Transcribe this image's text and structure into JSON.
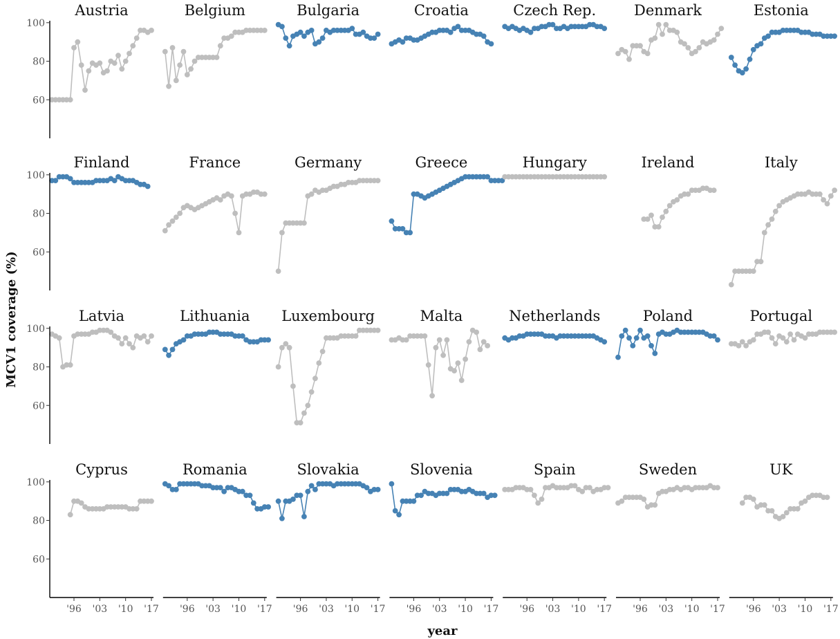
{
  "chart_data": {
    "type": "line",
    "xlabel": "year",
    "ylabel": "MCV1 coverage (%)",
    "xlim": [
      1990,
      2017
    ],
    "ylim": [
      40,
      101
    ],
    "y_ticks": [
      60,
      80,
      100
    ],
    "x_ticks": [
      {
        "value": 1996,
        "label": "'96"
      },
      {
        "value": 2003,
        "label": "'03"
      },
      {
        "value": 2010,
        "label": "'10"
      },
      {
        "value": 2017,
        "label": "'17"
      }
    ],
    "colors": {
      "highlight": "#4682b4",
      "other": "#bebebe"
    },
    "facets": [
      {
        "name": "Austria",
        "highlight": false,
        "start": 1990,
        "values": [
          60,
          60,
          60,
          60,
          60,
          60,
          87,
          90,
          78,
          65,
          75,
          79,
          78,
          79,
          74,
          75,
          80,
          79,
          83,
          76,
          80,
          84,
          88,
          92,
          96,
          96,
          95,
          96
        ]
      },
      {
        "name": "Belgium",
        "highlight": false,
        "start": 1990,
        "values": [
          85,
          67,
          87,
          70,
          78,
          85,
          73,
          76,
          80,
          82,
          82,
          82,
          82,
          82,
          82,
          88,
          92,
          92,
          93,
          95,
          95,
          95,
          96,
          96,
          96,
          96,
          96,
          96
        ]
      },
      {
        "name": "Bulgaria",
        "highlight": true,
        "start": 1990,
        "values": [
          99,
          98,
          92,
          88,
          93,
          94,
          95,
          93,
          95,
          96,
          89,
          90,
          92,
          96,
          95,
          96,
          96,
          96,
          96,
          96,
          97,
          94,
          94,
          95,
          93,
          92,
          92,
          94
        ]
      },
      {
        "name": "Croatia",
        "highlight": true,
        "start": 1990,
        "values": [
          89,
          90,
          91,
          90,
          92,
          92,
          91,
          91,
          92,
          93,
          94,
          95,
          95,
          96,
          96,
          96,
          95,
          97,
          98,
          96,
          96,
          96,
          95,
          94,
          94,
          93,
          90,
          89
        ]
      },
      {
        "name": "Czech Rep.",
        "highlight": true,
        "start": 1990,
        "values": [
          98,
          97,
          98,
          97,
          96,
          97,
          96,
          95,
          97,
          97,
          98,
          98,
          99,
          99,
          97,
          97,
          98,
          97,
          98,
          98,
          98,
          98,
          98,
          99,
          99,
          98,
          98,
          97
        ]
      },
      {
        "name": "Denmark",
        "highlight": false,
        "start": 1990,
        "values": [
          84,
          86,
          85,
          81,
          88,
          88,
          88,
          85,
          84,
          91,
          92,
          99,
          94,
          99,
          96,
          96,
          95,
          90,
          89,
          87,
          84,
          85,
          87,
          90,
          89,
          90,
          91,
          94,
          97
        ]
      },
      {
        "name": "Estonia",
        "highlight": true,
        "start": 1990,
        "values": [
          82,
          78,
          75,
          74,
          76,
          81,
          86,
          88,
          89,
          92,
          93,
          95,
          95,
          95,
          96,
          96,
          96,
          96,
          96,
          95,
          95,
          95,
          94,
          94,
          94,
          93,
          93,
          93,
          93
        ]
      },
      {
        "name": "Finland",
        "highlight": true,
        "start": 1990,
        "values": [
          97,
          97,
          99,
          99,
          99,
          98,
          96,
          96,
          96,
          96,
          96,
          96,
          97,
          97,
          97,
          97,
          98,
          97,
          99,
          98,
          97,
          97,
          97,
          96,
          95,
          95,
          94
        ]
      },
      {
        "name": "France",
        "highlight": false,
        "start": 1990,
        "values": [
          71,
          74,
          76,
          78,
          80,
          83,
          84,
          83,
          82,
          83,
          84,
          85,
          86,
          87,
          88,
          87,
          89,
          90,
          89,
          80,
          70,
          89,
          90,
          90,
          91,
          91,
          90,
          90
        ]
      },
      {
        "name": "Germany",
        "highlight": false,
        "start": 1990,
        "values": [
          50,
          70,
          75,
          75,
          75,
          75,
          75,
          75,
          89,
          90,
          92,
          91,
          92,
          92,
          93,
          94,
          94,
          95,
          95,
          96,
          96,
          96,
          97,
          97,
          97,
          97,
          97,
          97
        ]
      },
      {
        "name": "Greece",
        "highlight": true,
        "start": 1990,
        "values": [
          76,
          72,
          72,
          72,
          70,
          70,
          90,
          90,
          89,
          88,
          89,
          90,
          91,
          92,
          93,
          94,
          95,
          96,
          97,
          98,
          99,
          99,
          99,
          99,
          99,
          99,
          99,
          97,
          97,
          97,
          97
        ]
      },
      {
        "name": "Hungary",
        "highlight": false,
        "start": 1990,
        "values": [
          99,
          99,
          99,
          99,
          99,
          99,
          99,
          99,
          99,
          99,
          99,
          99,
          99,
          99,
          99,
          99,
          99,
          99,
          99,
          99,
          99,
          99,
          99,
          99,
          99,
          99,
          99,
          99
        ]
      },
      {
        "name": "Ireland",
        "highlight": false,
        "start": 1997,
        "values": [
          77,
          77,
          79,
          73,
          73,
          78,
          81,
          84,
          86,
          87,
          89,
          90,
          90,
          92,
          92,
          92,
          93,
          93,
          92,
          92
        ]
      },
      {
        "name": "Italy",
        "highlight": false,
        "start": 1990,
        "values": [
          43,
          50,
          50,
          50,
          50,
          50,
          50,
          55,
          55,
          70,
          74,
          77,
          81,
          84,
          86,
          87,
          88,
          89,
          90,
          90,
          90,
          91,
          90,
          90,
          90,
          87,
          85,
          89,
          92
        ]
      },
      {
        "name": "Latvia",
        "highlight": false,
        "start": 1990,
        "values": [
          97,
          96,
          95,
          80,
          81,
          81,
          96,
          97,
          97,
          97,
          97,
          98,
          98,
          99,
          99,
          99,
          98,
          96,
          95,
          92,
          95,
          92,
          90,
          96,
          95,
          96,
          93,
          96
        ]
      },
      {
        "name": "Lithuania",
        "highlight": true,
        "start": 1990,
        "values": [
          89,
          86,
          89,
          92,
          93,
          94,
          96,
          96,
          97,
          97,
          97,
          97,
          98,
          98,
          98,
          97,
          97,
          97,
          97,
          96,
          96,
          96,
          94,
          93,
          93,
          93,
          94,
          94,
          94
        ]
      },
      {
        "name": "Luxembourg",
        "highlight": false,
        "start": 1990,
        "values": [
          80,
          90,
          92,
          90,
          70,
          51,
          51,
          56,
          60,
          67,
          74,
          82,
          88,
          95,
          95,
          95,
          95,
          96,
          96,
          96,
          96,
          96,
          99,
          99,
          99,
          99,
          99,
          99
        ]
      },
      {
        "name": "Malta",
        "highlight": false,
        "start": 1990,
        "values": [
          94,
          94,
          95,
          94,
          94,
          96,
          96,
          96,
          96,
          96,
          81,
          65,
          90,
          94,
          86,
          94,
          79,
          78,
          82,
          73,
          84,
          93,
          99,
          98,
          89,
          93,
          91
        ]
      },
      {
        "name": "Netherlands",
        "highlight": true,
        "start": 1990,
        "values": [
          95,
          94,
          95,
          95,
          96,
          96,
          97,
          97,
          97,
          97,
          97,
          96,
          96,
          96,
          95,
          96,
          96,
          96,
          96,
          96,
          96,
          96,
          96,
          96,
          96,
          95,
          94,
          93
        ]
      },
      {
        "name": "Poland",
        "highlight": true,
        "start": 1990,
        "values": [
          85,
          96,
          99,
          95,
          91,
          95,
          99,
          95,
          96,
          91,
          87,
          97,
          98,
          97,
          97,
          98,
          99,
          98,
          98,
          98,
          98,
          98,
          98,
          98,
          97,
          96,
          96,
          94
        ]
      },
      {
        "name": "Portugal",
        "highlight": false,
        "start": 1990,
        "values": [
          92,
          92,
          91,
          93,
          91,
          93,
          94,
          97,
          97,
          98,
          98,
          95,
          92,
          96,
          95,
          93,
          97,
          94,
          97,
          96,
          95,
          97,
          97,
          97,
          98,
          98,
          98,
          98,
          98
        ]
      },
      {
        "name": "Cyprus",
        "highlight": false,
        "start": 1995,
        "values": [
          83,
          90,
          90,
          89,
          87,
          86,
          86,
          86,
          86,
          86,
          87,
          87,
          87,
          87,
          87,
          87,
          86,
          86,
          86,
          90,
          90,
          90,
          90
        ]
      },
      {
        "name": "Romania",
        "highlight": true,
        "start": 1990,
        "values": [
          99,
          98,
          96,
          96,
          99,
          99,
          99,
          99,
          99,
          99,
          98,
          98,
          98,
          97,
          97,
          97,
          95,
          97,
          97,
          96,
          95,
          95,
          93,
          93,
          89,
          86,
          86,
          87,
          87
        ]
      },
      {
        "name": "Slovakia",
        "highlight": true,
        "start": 1990,
        "values": [
          90,
          81,
          90,
          90,
          91,
          93,
          93,
          82,
          95,
          98,
          96,
          99,
          99,
          99,
          99,
          98,
          99,
          99,
          99,
          99,
          99,
          99,
          99,
          98,
          97,
          95,
          96,
          96
        ]
      },
      {
        "name": "Slovenia",
        "highlight": true,
        "start": 1990,
        "values": [
          99,
          85,
          83,
          90,
          90,
          90,
          90,
          93,
          93,
          95,
          94,
          94,
          93,
          94,
          94,
          94,
          96,
          96,
          96,
          95,
          95,
          96,
          95,
          94,
          94,
          94,
          92,
          93,
          93
        ]
      },
      {
        "name": "Spain",
        "highlight": false,
        "start": 1990,
        "values": [
          96,
          96,
          96,
          97,
          97,
          97,
          96,
          96,
          93,
          89,
          91,
          97,
          97,
          98,
          97,
          97,
          97,
          97,
          98,
          98,
          96,
          95,
          97,
          97,
          95,
          96,
          96,
          97,
          97
        ]
      },
      {
        "name": "Sweden",
        "highlight": false,
        "start": 1990,
        "values": [
          89,
          90,
          92,
          92,
          92,
          92,
          92,
          91,
          87,
          88,
          88,
          94,
          95,
          95,
          96,
          96,
          97,
          96,
          97,
          97,
          96,
          97,
          97,
          97,
          97,
          98,
          97,
          97
        ]
      },
      {
        "name": "UK",
        "highlight": false,
        "start": 1993,
        "values": [
          89,
          92,
          92,
          91,
          87,
          88,
          88,
          85,
          85,
          82,
          81,
          82,
          84,
          86,
          86,
          86,
          89,
          90,
          92,
          93,
          93,
          93,
          92,
          92
        ]
      }
    ]
  }
}
